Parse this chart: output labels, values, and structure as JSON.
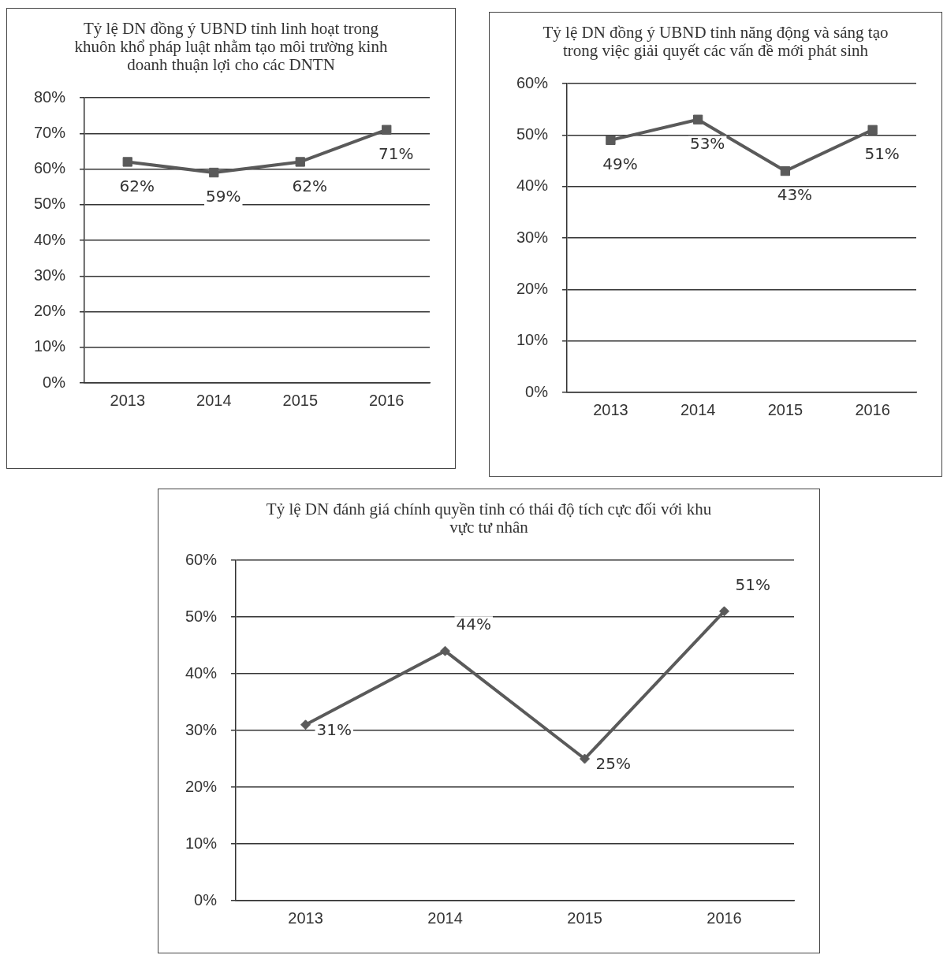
{
  "chart_data": [
    {
      "type": "line",
      "title": "Tỷ lệ DN đồng ý UBND tỉnh linh hoạt trong khuôn khổ pháp luật nhằm tạo môi trường kinh doanh thuận lợi cho các DNTN",
      "categories": [
        "2013",
        "2014",
        "2015",
        "2016"
      ],
      "series": [
        {
          "color": "#5a5a5a",
          "values": [
            62,
            59,
            62,
            71
          ],
          "value_labels": [
            "62%",
            "59%",
            "62%",
            "71%"
          ]
        }
      ],
      "ylim": [
        0,
        80
      ],
      "yticks": [
        {
          "value": 0,
          "label": "0%"
        },
        {
          "value": 10,
          "label": "10%"
        },
        {
          "value": 20,
          "label": "20%"
        },
        {
          "value": 30,
          "label": "30%"
        },
        {
          "value": 40,
          "label": "40%"
        },
        {
          "value": 50,
          "label": "50%"
        },
        {
          "value": 60,
          "label": "60%"
        },
        {
          "value": 70,
          "label": "70%"
        },
        {
          "value": 80,
          "label": "80%"
        }
      ],
      "grid": "y",
      "legend": false,
      "marker": "square",
      "line_style": "solid"
    },
    {
      "type": "line",
      "title": "Tỷ lệ DN đồng ý UBND tỉnh năng động và sáng tạo trong việc giải quyết các vấn đề mới phát sinh",
      "categories": [
        "2013",
        "2014",
        "2015",
        "2016"
      ],
      "series": [
        {
          "color": "#5a5a5a",
          "values": [
            49,
            53,
            43,
            51
          ],
          "value_labels": [
            "49%",
            "53%",
            "43%",
            "51%"
          ]
        }
      ],
      "ylim": [
        0,
        60
      ],
      "yticks": [
        {
          "value": 0,
          "label": "0%"
        },
        {
          "value": 10,
          "label": "10%"
        },
        {
          "value": 20,
          "label": "20%"
        },
        {
          "value": 30,
          "label": "30%"
        },
        {
          "value": 40,
          "label": "40%"
        },
        {
          "value": 50,
          "label": "50%"
        },
        {
          "value": 60,
          "label": "60%"
        }
      ],
      "grid": "y",
      "legend": false,
      "marker": "square",
      "line_style": "solid"
    },
    {
      "type": "line",
      "title": "Tỷ lệ DN đánh giá chính quyền tỉnh có thái độ tích cực đối với khu vực tư nhân",
      "categories": [
        "2013",
        "2014",
        "2015",
        "2016"
      ],
      "series": [
        {
          "color": "#5a5a5a",
          "values": [
            31,
            44,
            25,
            51
          ],
          "value_labels": [
            "31%",
            "44%",
            "25%",
            "51%"
          ]
        }
      ],
      "ylim": [
        0,
        60
      ],
      "yticks": [
        {
          "value": 0,
          "label": "0%"
        },
        {
          "value": 10,
          "label": "10%"
        },
        {
          "value": 20,
          "label": "20%"
        },
        {
          "value": 30,
          "label": "30%"
        },
        {
          "value": 40,
          "label": "40%"
        },
        {
          "value": 50,
          "label": "50%"
        },
        {
          "value": 60,
          "label": "60%"
        }
      ],
      "grid": "y",
      "legend": false,
      "marker": "diamond",
      "line_style": "solid"
    }
  ]
}
